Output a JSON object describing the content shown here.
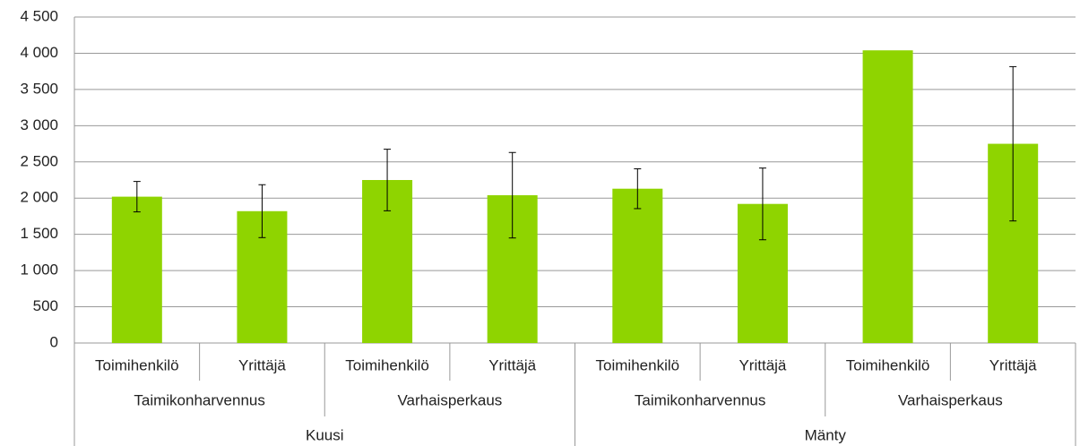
{
  "chart_data": {
    "type": "bar",
    "groups": [
      {
        "name": "Kuusi",
        "groups": [
          {
            "name": "Taimikonharvennus",
            "categories": [
              "Toimihenkilö",
              "Yrittäjä"
            ]
          },
          {
            "name": "Varhaisperkaus",
            "categories": [
              "Toimihenkilö",
              "Yrittäjä"
            ]
          }
        ]
      },
      {
        "name": "Mänty",
        "groups": [
          {
            "name": "Taimikonharvennus",
            "categories": [
              "Toimihenkilö",
              "Yrittäjä"
            ]
          },
          {
            "name": "Varhaisperkaus",
            "categories": [
              "Toimihenkilö",
              "Yrittäjä"
            ]
          }
        ]
      }
    ],
    "values": [
      2020,
      1820,
      2250,
      2040,
      2130,
      1920,
      4040,
      2750
    ],
    "errors": [
      210,
      365,
      425,
      590,
      275,
      495,
      null,
      1065
    ],
    "color": "#8fd400",
    "ylim": [
      0,
      4500
    ],
    "yticks": [
      0,
      500,
      {
        "value": 1000,
        "label": "1 000"
      },
      {
        "value": 1500,
        "label": "1 500"
      },
      {
        "value": 2000,
        "label": "2 000"
      },
      {
        "value": 2500,
        "label": "2 500"
      },
      {
        "value": 3000,
        "label": "3 000"
      },
      {
        "value": 3500,
        "label": "3 500"
      },
      {
        "value": 4000,
        "label": "4 000"
      },
      {
        "value": 4500,
        "label": "4 500"
      }
    ],
    "grid": true
  }
}
